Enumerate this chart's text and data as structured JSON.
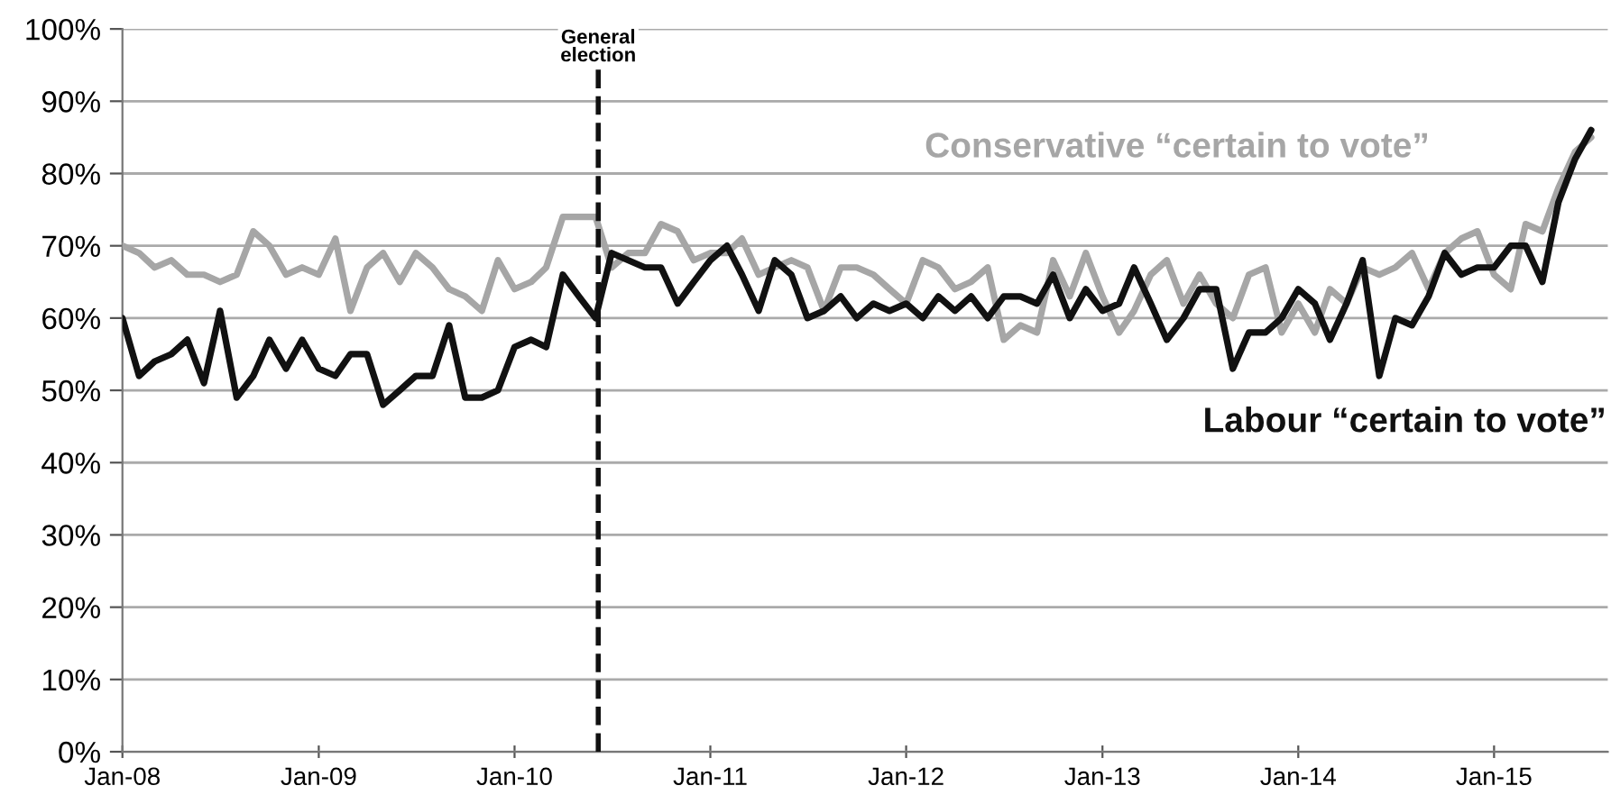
{
  "chart_data": {
    "type": "line",
    "x": [
      "2008-01",
      "2008-02",
      "2008-03",
      "2008-04",
      "2008-05",
      "2008-06",
      "2008-07",
      "2008-08",
      "2008-09",
      "2008-10",
      "2008-11",
      "2008-12",
      "2009-01",
      "2009-02",
      "2009-03",
      "2009-04",
      "2009-05",
      "2009-06",
      "2009-07",
      "2009-08",
      "2009-09",
      "2009-10",
      "2009-11",
      "2009-12",
      "2010-01",
      "2010-02",
      "2010-03",
      "2010-04",
      "2010-05",
      "2010-06",
      "2010-07",
      "2010-08",
      "2010-09",
      "2010-10",
      "2010-11",
      "2010-12",
      "2011-01",
      "2011-02",
      "2011-03",
      "2011-04",
      "2011-05",
      "2011-06",
      "2011-07",
      "2011-08",
      "2011-09",
      "2011-10",
      "2011-11",
      "2011-12",
      "2012-01",
      "2012-02",
      "2012-03",
      "2012-04",
      "2012-05",
      "2012-06",
      "2012-07",
      "2012-08",
      "2012-09",
      "2012-10",
      "2012-11",
      "2012-12",
      "2013-01",
      "2013-02",
      "2013-03",
      "2013-04",
      "2013-05",
      "2013-06",
      "2013-07",
      "2013-08",
      "2013-09",
      "2013-10",
      "2013-11",
      "2013-12",
      "2014-01",
      "2014-02",
      "2014-03",
      "2014-04",
      "2014-05",
      "2014-06",
      "2014-07",
      "2014-08",
      "2014-09",
      "2014-10",
      "2014-11",
      "2014-12",
      "2015-01",
      "2015-02",
      "2015-03",
      "2015-04",
      "2015-05",
      "2015-06",
      "2015-07"
    ],
    "series": [
      {
        "name": "Conservative “certain to vote”",
        "color": "#a6a6a6",
        "values": [
          70,
          69,
          67,
          68,
          66,
          66,
          65,
          66,
          72,
          70,
          66,
          67,
          66,
          71,
          61,
          67,
          69,
          65,
          69,
          67,
          64,
          63,
          61,
          68,
          64,
          65,
          67,
          74,
          74,
          74,
          67,
          69,
          69,
          73,
          72,
          68,
          69,
          69,
          71,
          66,
          67,
          68,
          67,
          61,
          67,
          67,
          66,
          64,
          62,
          68,
          67,
          64,
          65,
          67,
          57,
          59,
          58,
          68,
          63,
          69,
          63,
          58,
          61,
          66,
          68,
          62,
          66,
          62,
          60,
          66,
          67,
          58,
          62,
          58,
          64,
          62,
          67,
          66,
          67,
          69,
          64,
          69,
          71,
          72,
          66,
          64,
          73,
          72,
          78,
          83,
          85
        ]
      },
      {
        "name": "Labour “certain to vote”",
        "color": "#111111",
        "values": [
          60,
          52,
          54,
          55,
          57,
          51,
          61,
          49,
          52,
          57,
          53,
          57,
          53,
          52,
          55,
          55,
          48,
          50,
          52,
          52,
          59,
          49,
          49,
          50,
          56,
          57,
          56,
          66,
          63,
          60,
          69,
          68,
          67,
          67,
          62,
          65,
          68,
          70,
          66,
          61,
          68,
          66,
          60,
          61,
          63,
          60,
          62,
          61,
          62,
          60,
          63,
          61,
          63,
          60,
          63,
          63,
          62,
          66,
          60,
          64,
          61,
          62,
          67,
          62,
          57,
          60,
          64,
          64,
          53,
          58,
          58,
          60,
          64,
          62,
          57,
          62,
          68,
          52,
          60,
          59,
          63,
          69,
          66,
          67,
          67,
          70,
          70,
          65,
          76,
          82,
          86
        ]
      }
    ],
    "xlim": [
      "2008-01",
      "2015-08"
    ],
    "xticks": [
      {
        "value": "2008-01",
        "label": "Jan-08"
      },
      {
        "value": "2009-01",
        "label": "Jan-09"
      },
      {
        "value": "2010-01",
        "label": "Jan-10"
      },
      {
        "value": "2011-01",
        "label": "Jan-11"
      },
      {
        "value": "2012-01",
        "label": "Jan-12"
      },
      {
        "value": "2013-01",
        "label": "Jan-13"
      },
      {
        "value": "2014-01",
        "label": "Jan-14"
      },
      {
        "value": "2015-01",
        "label": "Jan-15"
      }
    ],
    "ylim": [
      0,
      100
    ],
    "yticks": [
      {
        "value": 0,
        "label": "0%"
      },
      {
        "value": 10,
        "label": "10%"
      },
      {
        "value": 20,
        "label": "20%"
      },
      {
        "value": 30,
        "label": "30%"
      },
      {
        "value": 40,
        "label": "40%"
      },
      {
        "value": 50,
        "label": "50%"
      },
      {
        "value": 60,
        "label": "60%"
      },
      {
        "value": 70,
        "label": "70%"
      },
      {
        "value": 80,
        "label": "80%"
      },
      {
        "value": 90,
        "label": "90%"
      },
      {
        "value": 100,
        "label": "100%"
      }
    ],
    "grid": "y",
    "legend": false,
    "marker": "none",
    "line_style": "solid",
    "ref_lines": [
      {
        "axis": "x",
        "value": "2010-06-06",
        "label": "General\nelection",
        "color": "#111111",
        "line_style": "dashed"
      }
    ]
  }
}
